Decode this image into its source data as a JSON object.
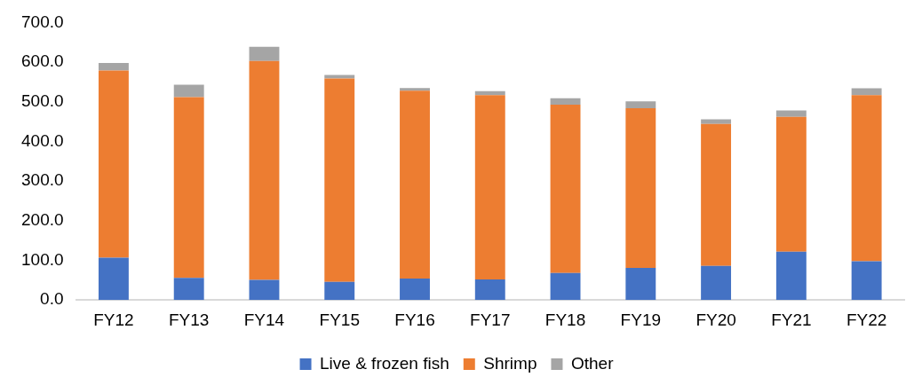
{
  "chart_data": {
    "type": "bar",
    "stacked": true,
    "categories": [
      "FY12",
      "FY13",
      "FY14",
      "FY15",
      "FY16",
      "FY17",
      "FY18",
      "FY19",
      "FY20",
      "FY21",
      "FY22"
    ],
    "series": [
      {
        "name": "Live & frozen fish",
        "color": "#4472c4",
        "values": [
          107,
          56,
          51,
          46,
          54,
          52,
          68,
          81,
          86,
          122,
          98
        ]
      },
      {
        "name": "Shrimp",
        "color": "#ed7d31",
        "values": [
          472,
          456,
          552,
          513,
          474,
          465,
          425,
          403,
          358,
          340,
          419
        ]
      },
      {
        "name": "Other",
        "color": "#a5a5a5",
        "values": [
          19,
          31,
          36,
          9,
          7,
          10,
          16,
          17,
          12,
          16,
          17
        ]
      }
    ],
    "ylim": [
      0,
      700
    ],
    "yticks": [
      {
        "value": 0,
        "label": "0.0"
      },
      {
        "value": 100,
        "label": "100.0"
      },
      {
        "value": 200,
        "label": "200.0"
      },
      {
        "value": 300,
        "label": "300.0"
      },
      {
        "value": 400,
        "label": "400.0"
      },
      {
        "value": 500,
        "label": "500.0"
      },
      {
        "value": 600,
        "label": "600.0"
      },
      {
        "value": 700,
        "label": "700.0"
      }
    ],
    "grid": false,
    "legend": "bottom"
  }
}
